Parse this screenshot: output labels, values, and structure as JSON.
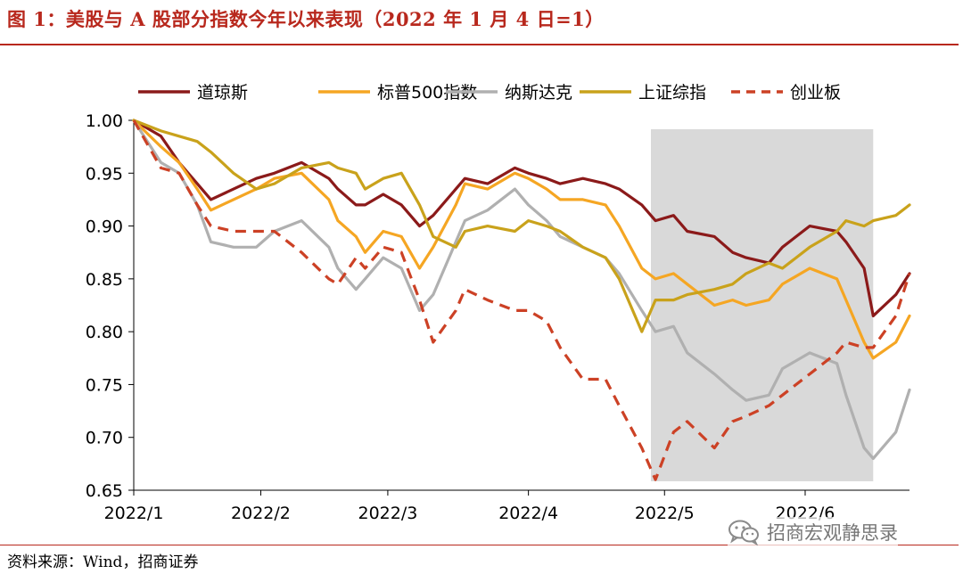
{
  "figure": {
    "title": "图 1：美股与 A 股部分指数今年以来表现（2022 年 1 月 4 日=1）",
    "source": "资料来源：Wind，招商证券",
    "watermark": "招商宏观静思录",
    "watermark_icon": "wechat-icon"
  },
  "chart_data": {
    "type": "line",
    "title": "",
    "xlabel": "",
    "ylabel": "",
    "ylim": [
      0.65,
      1.0
    ],
    "yticks": [
      "1.00",
      "0.95",
      "0.90",
      "0.85",
      "0.80",
      "0.75",
      "0.70",
      "0.65"
    ],
    "xlim": [
      "2022-01-04",
      "2022-06-24"
    ],
    "xticks": [
      {
        "label": "2022/1",
        "date": "2022-01-01"
      },
      {
        "label": "2022/2",
        "date": "2022-02-01"
      },
      {
        "label": "2022/3",
        "date": "2022-03-01"
      },
      {
        "label": "2022/4",
        "date": "2022-04-01"
      },
      {
        "label": "2022/5",
        "date": "2022-05-01"
      },
      {
        "label": "2022/6",
        "date": "2022-06-01"
      }
    ],
    "legend_position": "top",
    "grid": false,
    "shaded_region": {
      "from": "2022-04-28",
      "to": "2022-06-16",
      "color": "#d9d9d9"
    },
    "series": [
      {
        "name": "道琼斯",
        "color": "#8b1a1a",
        "style": "solid",
        "x": [
          "2022-01-04",
          "2022-01-10",
          "2022-01-14",
          "2022-01-18",
          "2022-01-21",
          "2022-01-26",
          "2022-01-31",
          "2022-02-04",
          "2022-02-10",
          "2022-02-16",
          "2022-02-18",
          "2022-02-22",
          "2022-02-24",
          "2022-02-28",
          "2022-03-04",
          "2022-03-08",
          "2022-03-11",
          "2022-03-16",
          "2022-03-18",
          "2022-03-23",
          "2022-03-29",
          "2022-04-01",
          "2022-04-05",
          "2022-04-08",
          "2022-04-13",
          "2022-04-18",
          "2022-04-21",
          "2022-04-26",
          "2022-04-29",
          "2022-05-03",
          "2022-05-06",
          "2022-05-12",
          "2022-05-16",
          "2022-05-19",
          "2022-05-24",
          "2022-05-27",
          "2022-06-02",
          "2022-06-08",
          "2022-06-10",
          "2022-06-14",
          "2022-06-16",
          "2022-06-21",
          "2022-06-24"
        ],
        "y": [
          1.0,
          0.985,
          0.96,
          0.94,
          0.925,
          0.935,
          0.945,
          0.95,
          0.96,
          0.945,
          0.935,
          0.92,
          0.92,
          0.93,
          0.92,
          0.9,
          0.91,
          0.935,
          0.945,
          0.94,
          0.955,
          0.95,
          0.945,
          0.94,
          0.945,
          0.94,
          0.935,
          0.92,
          0.905,
          0.91,
          0.895,
          0.89,
          0.875,
          0.87,
          0.865,
          0.88,
          0.9,
          0.895,
          0.885,
          0.86,
          0.815,
          0.835,
          0.855
        ]
      },
      {
        "name": "标普500指数",
        "color": "#f5a623",
        "style": "solid",
        "x": [
          "2022-01-04",
          "2022-01-10",
          "2022-01-14",
          "2022-01-18",
          "2022-01-21",
          "2022-01-26",
          "2022-01-31",
          "2022-02-04",
          "2022-02-10",
          "2022-02-16",
          "2022-02-18",
          "2022-02-22",
          "2022-02-24",
          "2022-02-28",
          "2022-03-04",
          "2022-03-08",
          "2022-03-11",
          "2022-03-16",
          "2022-03-18",
          "2022-03-23",
          "2022-03-29",
          "2022-04-01",
          "2022-04-05",
          "2022-04-08",
          "2022-04-13",
          "2022-04-18",
          "2022-04-21",
          "2022-04-26",
          "2022-04-29",
          "2022-05-03",
          "2022-05-06",
          "2022-05-12",
          "2022-05-16",
          "2022-05-19",
          "2022-05-24",
          "2022-05-27",
          "2022-06-02",
          "2022-06-08",
          "2022-06-10",
          "2022-06-14",
          "2022-06-16",
          "2022-06-21",
          "2022-06-24"
        ],
        "y": [
          1.0,
          0.975,
          0.96,
          0.935,
          0.915,
          0.925,
          0.935,
          0.945,
          0.95,
          0.925,
          0.905,
          0.89,
          0.875,
          0.895,
          0.89,
          0.86,
          0.88,
          0.92,
          0.94,
          0.935,
          0.95,
          0.945,
          0.935,
          0.925,
          0.925,
          0.92,
          0.9,
          0.86,
          0.85,
          0.855,
          0.845,
          0.825,
          0.83,
          0.825,
          0.83,
          0.845,
          0.86,
          0.85,
          0.83,
          0.79,
          0.775,
          0.79,
          0.815
        ]
      },
      {
        "name": "纳斯达克",
        "color": "#b0b0b0",
        "style": "solid",
        "x": [
          "2022-01-04",
          "2022-01-10",
          "2022-01-14",
          "2022-01-18",
          "2022-01-21",
          "2022-01-26",
          "2022-01-31",
          "2022-02-04",
          "2022-02-10",
          "2022-02-16",
          "2022-02-18",
          "2022-02-22",
          "2022-02-24",
          "2022-02-28",
          "2022-03-04",
          "2022-03-08",
          "2022-03-11",
          "2022-03-16",
          "2022-03-18",
          "2022-03-23",
          "2022-03-29",
          "2022-04-01",
          "2022-04-05",
          "2022-04-08",
          "2022-04-13",
          "2022-04-18",
          "2022-04-21",
          "2022-04-26",
          "2022-04-29",
          "2022-05-03",
          "2022-05-06",
          "2022-05-12",
          "2022-05-16",
          "2022-05-19",
          "2022-05-24",
          "2022-05-27",
          "2022-06-02",
          "2022-06-08",
          "2022-06-10",
          "2022-06-14",
          "2022-06-16",
          "2022-06-21",
          "2022-06-24"
        ],
        "y": [
          1.0,
          0.96,
          0.95,
          0.92,
          0.885,
          0.88,
          0.88,
          0.895,
          0.905,
          0.88,
          0.86,
          0.84,
          0.85,
          0.87,
          0.86,
          0.82,
          0.835,
          0.885,
          0.905,
          0.915,
          0.935,
          0.92,
          0.905,
          0.89,
          0.88,
          0.87,
          0.855,
          0.82,
          0.8,
          0.805,
          0.78,
          0.76,
          0.745,
          0.735,
          0.74,
          0.765,
          0.78,
          0.77,
          0.74,
          0.69,
          0.68,
          0.705,
          0.745
        ]
      },
      {
        "name": "上证综指",
        "color": "#c9a21b",
        "style": "solid",
        "x": [
          "2022-01-04",
          "2022-01-10",
          "2022-01-14",
          "2022-01-18",
          "2022-01-21",
          "2022-01-26",
          "2022-01-31",
          "2022-02-04",
          "2022-02-10",
          "2022-02-16",
          "2022-02-18",
          "2022-02-22",
          "2022-02-24",
          "2022-02-28",
          "2022-03-04",
          "2022-03-08",
          "2022-03-11",
          "2022-03-16",
          "2022-03-18",
          "2022-03-23",
          "2022-03-29",
          "2022-04-01",
          "2022-04-05",
          "2022-04-08",
          "2022-04-13",
          "2022-04-18",
          "2022-04-21",
          "2022-04-26",
          "2022-04-29",
          "2022-05-03",
          "2022-05-06",
          "2022-05-12",
          "2022-05-16",
          "2022-05-19",
          "2022-05-24",
          "2022-05-27",
          "2022-06-02",
          "2022-06-08",
          "2022-06-10",
          "2022-06-14",
          "2022-06-16",
          "2022-06-21",
          "2022-06-24"
        ],
        "y": [
          1.0,
          0.99,
          0.985,
          0.98,
          0.97,
          0.95,
          0.935,
          0.94,
          0.955,
          0.96,
          0.955,
          0.95,
          0.935,
          0.945,
          0.95,
          0.92,
          0.89,
          0.88,
          0.895,
          0.9,
          0.895,
          0.905,
          0.9,
          0.895,
          0.88,
          0.87,
          0.85,
          0.8,
          0.83,
          0.83,
          0.835,
          0.84,
          0.845,
          0.855,
          0.865,
          0.86,
          0.88,
          0.895,
          0.905,
          0.9,
          0.905,
          0.91,
          0.92
        ]
      },
      {
        "name": "创业板",
        "color": "#cc4125",
        "style": "dashed",
        "x": [
          "2022-01-04",
          "2022-01-10",
          "2022-01-14",
          "2022-01-18",
          "2022-01-21",
          "2022-01-26",
          "2022-01-31",
          "2022-02-04",
          "2022-02-10",
          "2022-02-16",
          "2022-02-18",
          "2022-02-22",
          "2022-02-24",
          "2022-02-28",
          "2022-03-04",
          "2022-03-08",
          "2022-03-11",
          "2022-03-16",
          "2022-03-18",
          "2022-03-23",
          "2022-03-29",
          "2022-04-01",
          "2022-04-05",
          "2022-04-08",
          "2022-04-13",
          "2022-04-18",
          "2022-04-21",
          "2022-04-26",
          "2022-04-29",
          "2022-05-03",
          "2022-05-06",
          "2022-05-12",
          "2022-05-16",
          "2022-05-19",
          "2022-05-24",
          "2022-05-27",
          "2022-06-02",
          "2022-06-08",
          "2022-06-10",
          "2022-06-14",
          "2022-06-16",
          "2022-06-21",
          "2022-06-24"
        ],
        "y": [
          1.0,
          0.955,
          0.95,
          0.92,
          0.9,
          0.895,
          0.895,
          0.895,
          0.875,
          0.85,
          0.845,
          0.87,
          0.86,
          0.88,
          0.875,
          0.83,
          0.79,
          0.82,
          0.84,
          0.83,
          0.82,
          0.82,
          0.81,
          0.785,
          0.755,
          0.755,
          0.73,
          0.69,
          0.66,
          0.705,
          0.715,
          0.69,
          0.715,
          0.72,
          0.73,
          0.74,
          0.76,
          0.78,
          0.79,
          0.785,
          0.785,
          0.815,
          0.855
        ]
      }
    ]
  }
}
